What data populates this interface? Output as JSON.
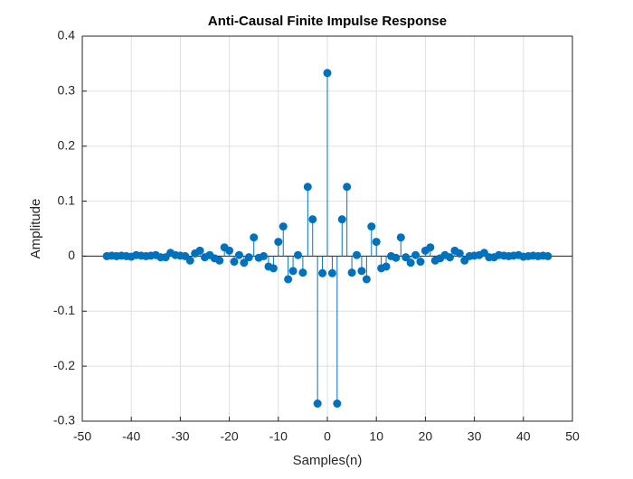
{
  "chart_data": {
    "type": "stem",
    "title": "Anti-Causal Finite Impulse Response",
    "xlabel": "Samples(n)",
    "ylabel": "Amplitude",
    "x": [
      -45,
      -44,
      -43,
      -42,
      -41,
      -40,
      -39,
      -38,
      -37,
      -36,
      -35,
      -34,
      -33,
      -32,
      -31,
      -30,
      -29,
      -28,
      -27,
      -26,
      -25,
      -24,
      -23,
      -22,
      -21,
      -20,
      -19,
      -18,
      -17,
      -16,
      -15,
      -14,
      -13,
      -12,
      -11,
      -10,
      -9,
      -8,
      -7,
      -6,
      -5,
      -4,
      -3,
      -2,
      -1,
      0,
      1,
      2,
      3,
      4,
      5,
      6,
      7,
      8,
      9,
      10,
      11,
      12,
      13,
      14,
      15,
      16,
      17,
      18,
      19,
      20,
      21,
      22,
      23,
      24,
      25,
      26,
      27,
      28,
      29,
      30,
      31,
      32,
      33,
      34,
      35,
      36,
      37,
      38,
      39,
      40,
      41,
      42,
      43,
      44,
      45
    ],
    "values": [
      0,
      0.001,
      0,
      0.001,
      0,
      -0.001,
      0.002,
      0.001,
      0,
      0.001,
      0.002,
      -0.002,
      -0.002,
      0.006,
      0.002,
      0.001,
      0,
      -0.008,
      0.005,
      0.01,
      -0.002,
      0.002,
      -0.004,
      -0.008,
      0.016,
      0.01,
      -0.01,
      0.002,
      -0.012,
      -0.002,
      0.034,
      -0.003,
      0,
      -0.019,
      -0.022,
      0.026,
      0.054,
      -0.042,
      -0.027,
      0.002,
      -0.03,
      0.126,
      0.067,
      -0.268,
      -0.031,
      0.333,
      -0.031,
      -0.268,
      0.067,
      0.126,
      -0.03,
      0.002,
      -0.027,
      -0.042,
      0.054,
      0.026,
      -0.022,
      -0.019,
      0,
      -0.003,
      0.034,
      -0.002,
      -0.012,
      0.002,
      -0.01,
      0.01,
      0.016,
      -0.008,
      -0.004,
      0.002,
      -0.002,
      0.01,
      0.005,
      -0.008,
      0,
      0.001,
      0.002,
      0.006,
      -0.002,
      -0.002,
      0.002,
      0.001,
      0,
      0.001,
      0.002,
      -0.001,
      0,
      0.001,
      0,
      0.001,
      0
    ],
    "color": "#0072bd",
    "xlim": [
      -50,
      50
    ],
    "xticks": [
      -50,
      -40,
      -30,
      -20,
      -10,
      0,
      10,
      20,
      30,
      40,
      50
    ],
    "ylim": [
      -0.3,
      0.4
    ],
    "yticks": [
      -0.3,
      -0.2,
      -0.1,
      0,
      0.1,
      0.2,
      0.3,
      0.4
    ],
    "grid": true
  }
}
